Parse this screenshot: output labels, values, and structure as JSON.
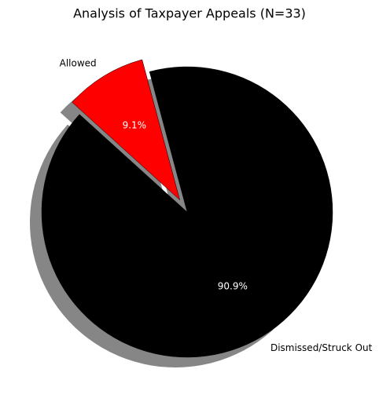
{
  "chart_data": {
    "type": "pie",
    "title": "Analysis of Taxpayer Appeals (N=33)",
    "categories": [
      "Allowed",
      "Dismissed/Struck Out"
    ],
    "values": [
      9.1,
      90.9
    ],
    "value_labels": [
      "9.1%",
      "90.9%"
    ],
    "colors": [
      "#ff0000",
      "#000000"
    ],
    "shadow": true
  }
}
